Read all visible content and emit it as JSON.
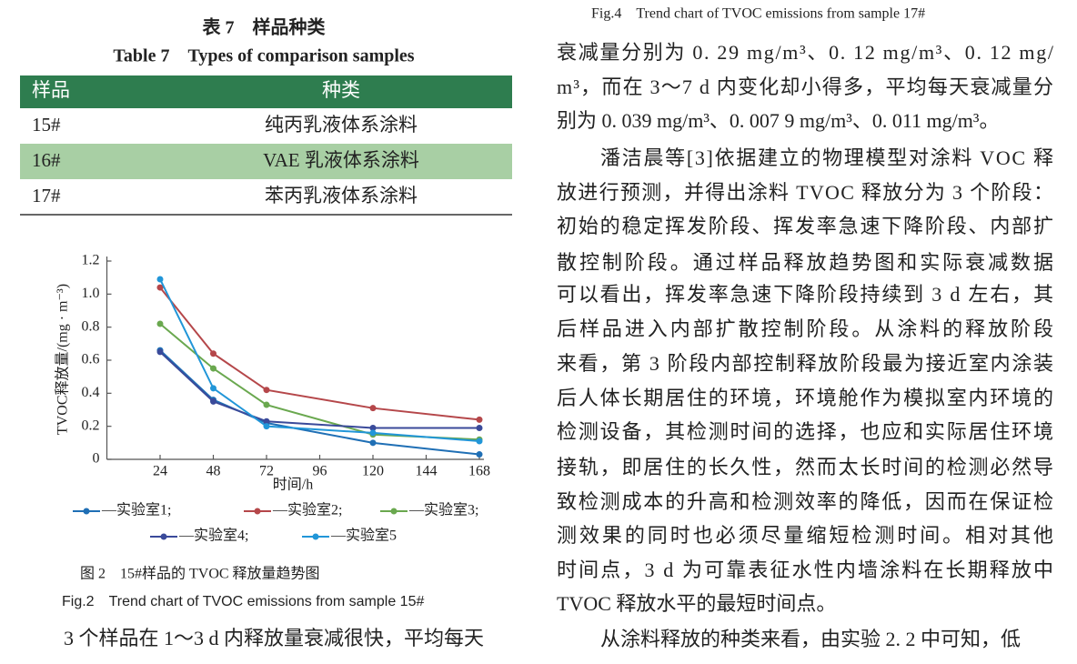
{
  "table": {
    "caption_cn": "表 7　样品种类",
    "caption_en": "Table 7　Types of comparison samples",
    "header": [
      "样品",
      "种类"
    ],
    "rows": [
      [
        "15#",
        "纯丙乳液体系涂料"
      ],
      [
        "16#",
        "VAE 乳液体系涂料"
      ],
      [
        "17#",
        "苯丙乳液体系涂料"
      ]
    ]
  },
  "chart_data": {
    "type": "line",
    "x_label": "时间/h",
    "y_label": "TVOC释放量/(mg · m⁻³)",
    "x": [
      24,
      48,
      72,
      120,
      168
    ],
    "xlim": [
      0,
      168
    ],
    "xticks": [
      24,
      48,
      72,
      96,
      120,
      144,
      168
    ],
    "ylim": [
      0,
      1.2
    ],
    "yticks": [
      0,
      0.2,
      0.4,
      0.6,
      0.8,
      {
        "value": 1,
        "label": "1.0"
      },
      1.2
    ],
    "series": [
      {
        "name": "—实验室1;",
        "color": "#1f6fb5",
        "values": [
          0.66,
          0.36,
          0.22,
          0.1,
          0.03
        ]
      },
      {
        "name": "—实验室2;",
        "color": "#b5474a",
        "values": [
          1.04,
          0.64,
          0.42,
          0.31,
          0.24
        ]
      },
      {
        "name": "—实验室3;",
        "color": "#6aa84f",
        "values": [
          0.82,
          0.55,
          0.33,
          0.15,
          0.12
        ]
      },
      {
        "name": "—实验室4;",
        "color": "#3a4a9a",
        "values": [
          0.65,
          0.35,
          0.23,
          0.19,
          0.19
        ]
      },
      {
        "name": "—实验室5",
        "color": "#2196d8",
        "values": [
          1.09,
          0.43,
          0.2,
          0.16,
          0.11
        ]
      }
    ],
    "caption_cn": "图 2　15#样品的 TVOC 释放量趋势图",
    "caption_en": "Fig.2　Trend chart of TVOC emissions from sample 15#"
  },
  "left_text": "3 个样品在 1～3 d 内释放量衰减很快，平均每天",
  "right_header": "Fig.4　Trend chart of TVOC emissions from sample 17#",
  "paragraphs": [
    [
      "衰减量分别为 0. 29 mg/m³、0. 12 mg/m³、0. 12 mg/",
      "m³，而在 3～7 d 内变化却小得多，平均每天衰减量分",
      "别为 0. 039 mg/m³、0. 007 9 mg/m³、0. 011 mg/m³。"
    ],
    [
      "潘洁晨等[3]依据建立的物理模型对涂料 VOC 释",
      "放进行预测，并得出涂料 TVOC 释放分为 3 个阶段：",
      "初始的稳定挥发阶段、挥发率急速下降阶段、内部扩",
      "散控制阶段。通过样品释放趋势图和实际衰减数据",
      "可以看出，挥发率急速下降阶段持续到 3 d 左右，其",
      "后样品进入内部扩散控制阶段。从涂料的释放阶段",
      "来看，第 3 阶段内部控制释放阶段最为接近室内涂装",
      "后人体长期居住的环境，环境舱作为模拟室内环境的",
      "检测设备，其检测时间的选择，也应和实际居住环境",
      "接轨，即居住的长久性，然而太长时间的检测必然导",
      "致检测成本的升高和检测效率的降低，因而在保证检",
      "测效果的同时也必须尽量缩短检测时间。相对其他",
      "时间点，3 d 为可靠表征水性内墙涂料在长期释放中",
      "TVOC 释放水平的最短时间点。"
    ],
    [
      "从涂料释放的种类来看，由实验 2. 2 中可知，低"
    ]
  ]
}
